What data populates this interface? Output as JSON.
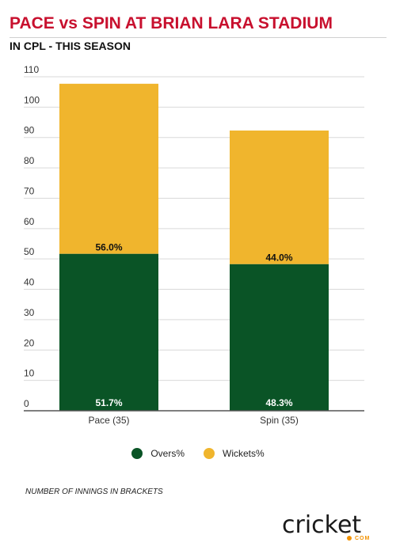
{
  "header": {
    "title": "PACE vs SPIN AT BRIAN LARA STADIUM",
    "subtitle": "IN CPL - THIS SEASON"
  },
  "chart_data": {
    "type": "bar",
    "stacked": true,
    "categories": [
      "Pace (35)",
      "Spin (35)"
    ],
    "series": [
      {
        "name": "Overs%",
        "values": [
          51.7,
          48.3
        ],
        "labels": [
          "51.7%",
          "48.3%"
        ],
        "color": "#0a5426"
      },
      {
        "name": "Wickets%",
        "values": [
          56.0,
          44.0
        ],
        "labels": [
          "56.0%",
          "44.0%"
        ],
        "color": "#f0b52d"
      }
    ],
    "ylim": [
      0,
      110
    ],
    "yticks": [
      0,
      10,
      20,
      30,
      40,
      50,
      60,
      70,
      80,
      90,
      100,
      110
    ],
    "grid": true,
    "legend": "bottom-center"
  },
  "legend": {
    "items": [
      {
        "label": "Overs%",
        "color": "#0a5426"
      },
      {
        "label": "Wickets%",
        "color": "#f0b52d"
      }
    ]
  },
  "footnote": "NUMBER OF INNINGS IN BRACKETS",
  "logo": {
    "word": "cricket",
    "suffix": "COM"
  }
}
